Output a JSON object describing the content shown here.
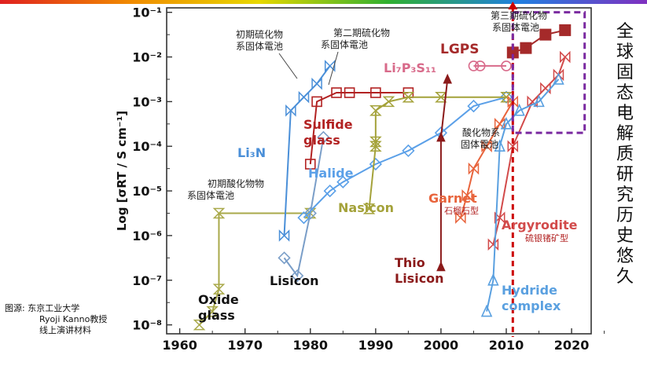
{
  "side_title": "全球固态电解质研究历史悠久",
  "source_note": {
    "label": "图源:",
    "line1": "东京工业大学",
    "line2": "Ryoji Kanno教授",
    "line3": "线上演讲材料"
  },
  "colors": {
    "sulfide": "#b22222",
    "lgps": "#a52a2a",
    "thio": "#8b1a1a",
    "garnet": "#e8643c",
    "li3n": "#4a8fd8",
    "halide": "#5ba0e8",
    "nasicon": "#a4a23a",
    "lisicon": "#7a9ec8",
    "oxide": "#a9a94a",
    "argyrodite": "#d24a4a",
    "hydride": "#5aa0e0",
    "li7p3s11": "#d86a8a",
    "divider": "#cc0000",
    "box": "#7a2aa0"
  },
  "chart_data": {
    "type": "scatter",
    "title": "",
    "xlabel": "",
    "ylabel": "Log [σRT / S cm⁻¹]",
    "xlim": [
      1958,
      2023
    ],
    "ylim": [
      -8.2,
      -0.9
    ],
    "x_ticks": [
      1960,
      1970,
      1980,
      1990,
      2000,
      2010,
      2020
    ],
    "x_tick_labels": [
      "1960",
      "1970",
      "1980",
      "1990",
      "2000",
      "2010",
      "2020"
    ],
    "y_ticks": [
      -8,
      -7,
      -6,
      -5,
      -4,
      -3,
      -2,
      -1
    ],
    "y_tick_labels": [
      "10⁻⁸",
      "10⁻⁷",
      "10⁻⁶",
      "10⁻⁵",
      "10⁻⁴",
      "10⁻³",
      "10⁻²",
      "10⁻¹"
    ],
    "divider_year": 2011,
    "highlight_box": {
      "x": [
        2011,
        2022
      ],
      "y": [
        -3.7,
        -1.0
      ]
    },
    "series": [
      {
        "name": "Oxide glass",
        "color_key": "oxide",
        "marker": "hourglass",
        "x": [
          1963,
          1965,
          1966,
          1966,
          1980
        ],
        "y": [
          -8.0,
          -7.7,
          -7.2,
          -5.5,
          -5.5
        ]
      },
      {
        "name": "Li3N",
        "color_key": "li3n",
        "marker": "bowtie",
        "x": [
          1976,
          1977,
          1979,
          1981,
          1983
        ],
        "y": [
          -6.0,
          -3.2,
          -2.9,
          -2.6,
          -2.2
        ]
      },
      {
        "name": "Lisicon",
        "color_key": "lisicon",
        "marker": "diamond",
        "x": [
          1976,
          1978,
          1980,
          1982
        ],
        "y": [
          -6.5,
          -6.9,
          -5.5,
          -3.8
        ]
      },
      {
        "name": "Sulfide glass",
        "color_key": "sulfide",
        "marker": "square",
        "x": [
          1980,
          1981,
          1984,
          1986,
          1990,
          1995
        ],
        "y": [
          -4.4,
          -3.0,
          -2.8,
          -2.8,
          -2.8,
          -2.8
        ]
      },
      {
        "name": "Halide",
        "color_key": "halide",
        "marker": "diamond",
        "x": [
          1979,
          1983,
          1985,
          1990,
          1995,
          2000,
          2005,
          2010
        ],
        "y": [
          -5.6,
          -5.0,
          -4.8,
          -4.4,
          -4.1,
          -3.7,
          -3.1,
          -2.9
        ]
      },
      {
        "name": "Nasicon",
        "color_key": "nasicon",
        "marker": "hourglass",
        "x": [
          1989,
          1990,
          1990,
          1990,
          1992,
          1995,
          2000,
          2010
        ],
        "y": [
          -5.4,
          -4.0,
          -3.9,
          -3.2,
          -3.0,
          -2.9,
          -2.9,
          -2.9
        ]
      },
      {
        "name": "Li7P3S11",
        "color_key": "li7p3s11",
        "marker": "circle",
        "x": [
          2005,
          2006,
          2010
        ],
        "y": [
          -2.2,
          -2.2,
          -2.2
        ]
      },
      {
        "name": "LGPS",
        "color_key": "lgps",
        "marker": "filled-square",
        "x": [
          2011,
          2013,
          2016,
          2019
        ],
        "y": [
          -1.9,
          -1.8,
          -1.5,
          -1.4
        ]
      },
      {
        "name": "Thio-Lisicon",
        "color_key": "thio",
        "marker": "filled-triangle",
        "x": [
          2000,
          2000,
          2001
        ],
        "y": [
          -6.7,
          -3.8,
          -2.5
        ]
      },
      {
        "name": "Garnet",
        "color_key": "garnet",
        "marker": "bowtie",
        "x": [
          2003,
          2004,
          2005,
          2007,
          2009,
          2011
        ],
        "y": [
          -5.6,
          -5.1,
          -4.5,
          -4.0,
          -3.5,
          -3.0
        ]
      },
      {
        "name": "Argyrodite",
        "color_key": "argyrodite",
        "marker": "bowtie",
        "x": [
          2008,
          2009,
          2011,
          2014,
          2016,
          2018,
          2019
        ],
        "y": [
          -6.2,
          -5.6,
          -4.0,
          -3.0,
          -2.7,
          -2.4,
          -2.0
        ]
      },
      {
        "name": "Hydride complex",
        "color_key": "hydride",
        "marker": "triangle",
        "x": [
          2007,
          2008,
          2009,
          2010,
          2012,
          2015,
          2018
        ],
        "y": [
          -7.7,
          -7.0,
          -4.0,
          -3.5,
          -3.2,
          -3.0,
          -2.5
        ]
      }
    ],
    "annotations": {
      "first_sulfide": {
        "line1": "初期硫化物",
        "line2": "系固体電池"
      },
      "second_sulfide": {
        "line1": "第二期硫化物",
        "line2": "系固体電池"
      },
      "third_sulfide": {
        "line1": "第三期硫化物",
        "line2": "系固体電池"
      },
      "first_oxide": {
        "line1": "初期酸化物物",
        "line2": "系固体電池"
      },
      "oxide_battery": {
        "line1": "酸化物系",
        "line2": "固体電池"
      },
      "lgps": "LGPS",
      "li7p3s11": "Li₇P₃S₁₁",
      "sulfide_glass": {
        "line1": "Sulfide",
        "line2": "glass"
      },
      "li3n": "Li₃N",
      "halide": "Halide",
      "nasicon": "Nasicon",
      "garnet": "Garnet",
      "garnet_cn": "石榴石型",
      "argyrodite": "Argyrodite",
      "argyrodite_cn": "硫银锗矿型",
      "lisicon": "Lisicon",
      "thio_lisicon": {
        "line1": "Thio",
        "line2": "Lisicon"
      },
      "oxide_glass": {
        "line1": "Oxide",
        "line2": "glass"
      },
      "hydride": {
        "line1": "Hydride",
        "line2": "complex"
      }
    }
  }
}
